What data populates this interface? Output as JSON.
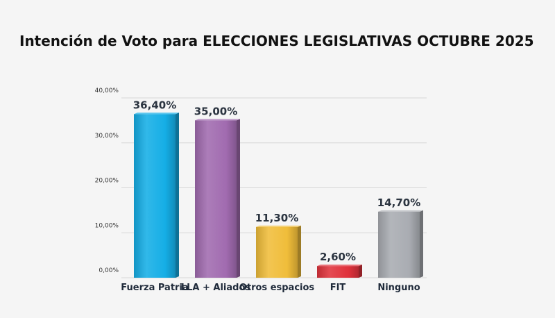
{
  "chart_data": {
    "type": "bar",
    "title": "Intención de Voto para ELECCIONES LEGISLATIVAS OCTUBRE 2025",
    "categories": [
      "Fuerza Patria",
      "LLA + Aliados",
      "Otros espacios",
      "FIT",
      "Ninguno"
    ],
    "values": [
      36.4,
      35.0,
      11.3,
      2.6,
      14.7
    ],
    "data_labels": [
      "36,40%",
      "35,00%",
      "11,30%",
      "2,60%",
      "14,70%"
    ],
    "bar_colors": [
      "#15aee6",
      "#a16bb0",
      "#f0bd3a",
      "#e0323c",
      "#a9acb2"
    ],
    "ylim": [
      0,
      40
    ],
    "yticks": [
      0,
      10,
      20,
      30,
      40
    ],
    "ytick_labels": [
      "0,00%",
      "10,00%",
      "20,00%",
      "30,00%",
      "40,00%"
    ],
    "grid": true,
    "legend": "none"
  }
}
